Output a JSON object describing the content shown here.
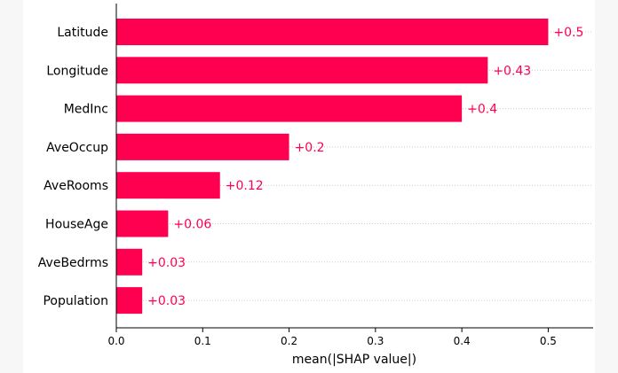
{
  "chart_data": {
    "type": "bar",
    "orientation": "horizontal",
    "categories": [
      "Latitude",
      "Longitude",
      "MedInc",
      "AveOccup",
      "AveRooms",
      "HouseAge",
      "AveBedrms",
      "Population"
    ],
    "values": [
      0.5,
      0.43,
      0.4,
      0.2,
      0.12,
      0.06,
      0.03,
      0.03
    ],
    "data_labels": [
      "+0.5",
      "+0.43",
      "+0.4",
      "+0.2",
      "+0.12",
      "+0.06",
      "+0.03",
      "+0.03"
    ],
    "xlabel": "mean(|SHAP value|)",
    "xlim": [
      0,
      0.552
    ],
    "xticks": [
      0.0,
      0.1,
      0.2,
      0.3,
      0.4,
      0.5
    ],
    "xtick_labels": [
      "0.0",
      "0.1",
      "0.2",
      "0.3",
      "0.4",
      "0.5"
    ],
    "grid": "horizontal dotted guide lines per category",
    "legend": "none"
  },
  "colors": {
    "bar": "#ff0051",
    "label": "#ff0051",
    "axis": "#000000",
    "guide": "#cccccc",
    "text": "#000000"
  }
}
